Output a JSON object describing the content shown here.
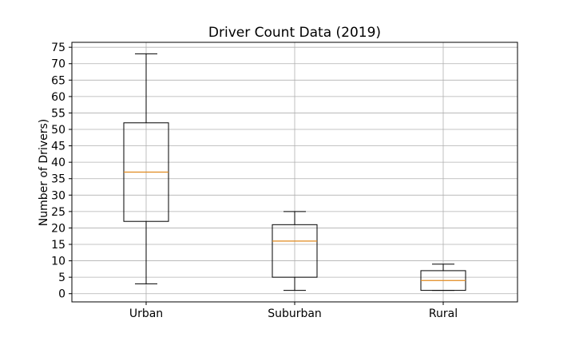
{
  "chart_data": {
    "type": "box",
    "title": "Driver Count Data (2019)",
    "xlabel": "",
    "ylabel": "Number of Drivers)",
    "ylim": [
      -2.5,
      76.5
    ],
    "yticks": [
      0,
      5,
      10,
      15,
      20,
      25,
      30,
      35,
      40,
      45,
      50,
      55,
      60,
      65,
      70,
      75
    ],
    "grid": true,
    "categories": [
      "Urban",
      "Suburban",
      "Rural"
    ],
    "boxes": [
      {
        "label": "Urban",
        "min": 3,
        "q1": 22,
        "median": 37,
        "q3": 52,
        "max": 73
      },
      {
        "label": "Suburban",
        "min": 1,
        "q1": 5,
        "median": 16,
        "q3": 21,
        "max": 25
      },
      {
        "label": "Rural",
        "min": 1,
        "q1": 1,
        "median": 4,
        "q3": 7,
        "max": 9
      }
    ],
    "colors": {
      "median": "#e08a1e",
      "grid": "#b0b0b0",
      "box": "#000000"
    }
  }
}
